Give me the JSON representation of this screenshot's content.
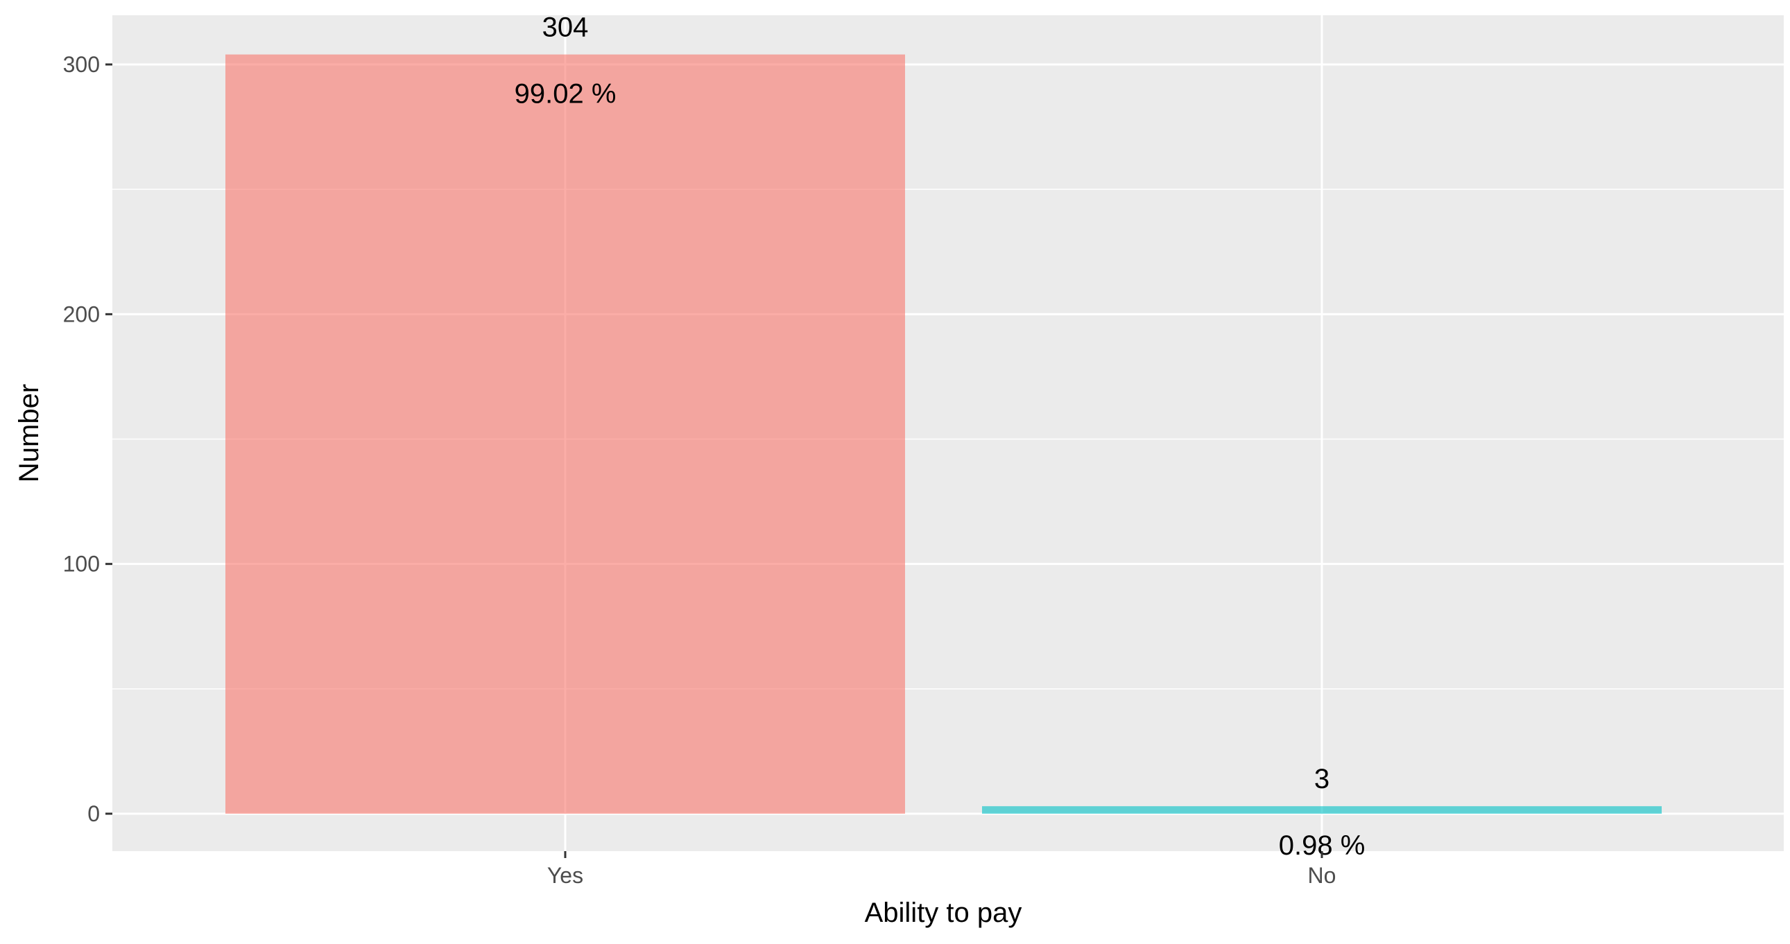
{
  "chart_data": {
    "type": "bar",
    "categories": [
      "Yes",
      "No"
    ],
    "values": [
      304,
      3
    ],
    "percent_labels": [
      "99.02 %",
      "0.98 %"
    ],
    "colors": [
      "#F8766D",
      "#00BFC4"
    ],
    "xlabel": "Ability to pay",
    "ylabel": "Number",
    "ylim": [
      0,
      300
    ],
    "yticks": [
      0,
      100,
      200,
      300
    ],
    "grid": true,
    "legend": "none"
  }
}
